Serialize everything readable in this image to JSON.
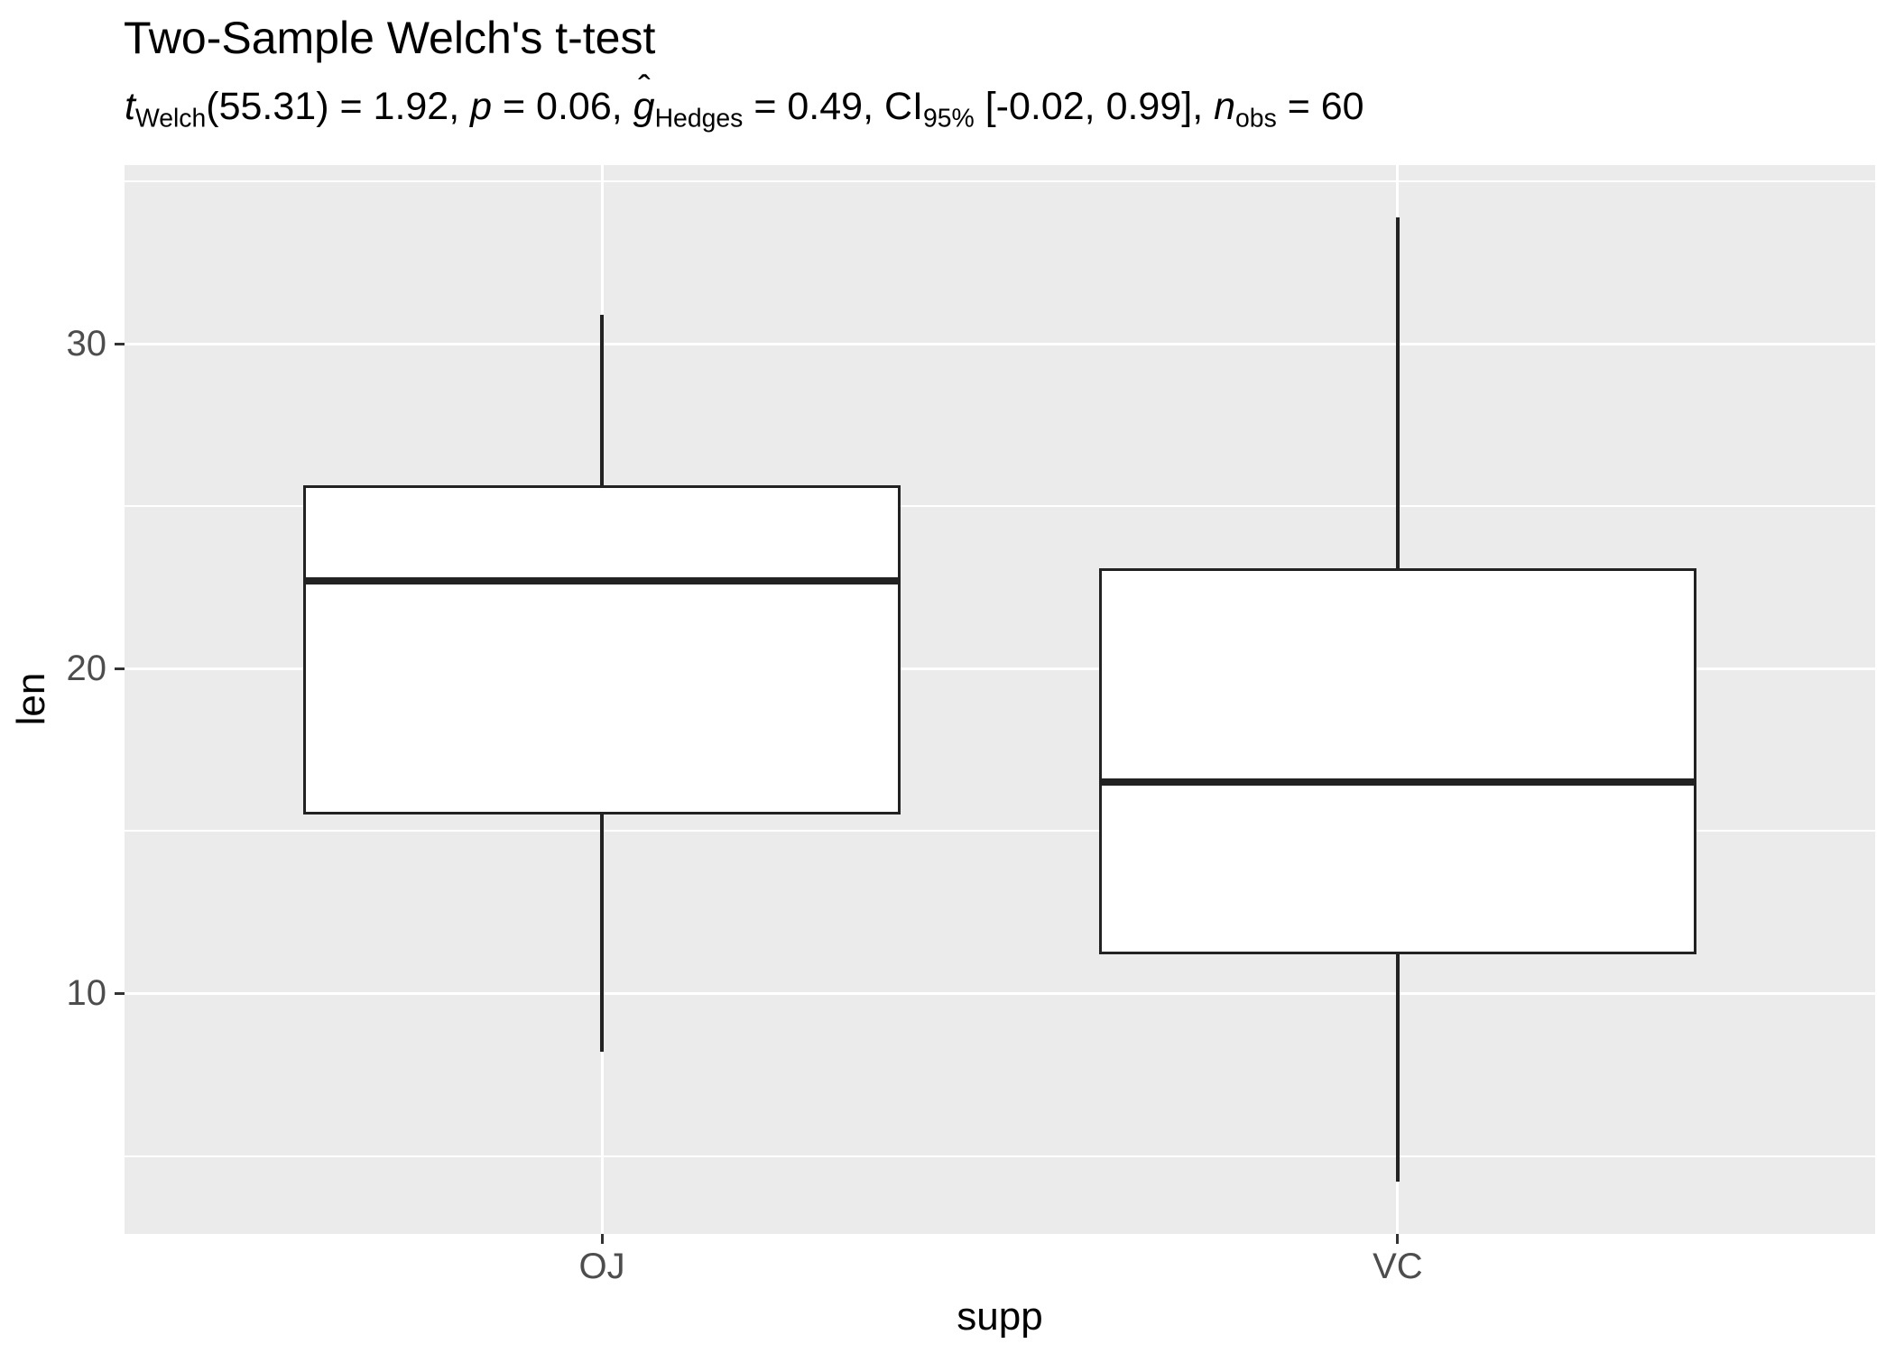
{
  "title": "Two-Sample Welch's t-test",
  "hat_glyph": "ˆ",
  "subtitle_segments": [
    {
      "text": "t",
      "style": "italic"
    },
    {
      "text": "Welch",
      "style": "sub"
    },
    {
      "text": "(55.31) = 1.92, ",
      "style": "plain"
    },
    {
      "text": "p",
      "style": "italic"
    },
    {
      "text": " = 0.06, ",
      "style": "plain"
    },
    {
      "text": "g",
      "style": "hat-italic"
    },
    {
      "text": "Hedges",
      "style": "sub"
    },
    {
      "text": " = 0.49, CI",
      "style": "plain"
    },
    {
      "text": "95%",
      "style": "sub"
    },
    {
      "text": " [-0.02, 0.99], ",
      "style": "plain"
    },
    {
      "text": "n",
      "style": "italic"
    },
    {
      "text": "obs",
      "style": "sub"
    },
    {
      "text": " = 60",
      "style": "plain"
    }
  ],
  "axes": {
    "x_title": "supp",
    "y_title": "len",
    "x_tick_labels": [
      "OJ",
      "VC"
    ],
    "y_tick_labels": [
      "10",
      "20",
      "30"
    ]
  },
  "chart_data": {
    "type": "boxplot",
    "title": "Two-Sample Welch's t-test",
    "subtitle": "t_Welch(55.31) = 1.92, p = 0.06, g-hat_Hedges = 0.49, CI_95% [-0.02, 0.99], n_obs = 60",
    "xlabel": "supp",
    "ylabel": "len",
    "categories": [
      "OJ",
      "VC"
    ],
    "y_major_ticks": [
      10,
      20,
      30
    ],
    "y_minor_gridlines": [
      5,
      15,
      25,
      35
    ],
    "ylim": [
      2.6,
      35.5
    ],
    "grid": true,
    "legend": "none",
    "series": [
      {
        "name": "OJ",
        "whisker_low": 8.2,
        "q1": 15.52,
        "median": 22.7,
        "q3": 25.65,
        "whisker_high": 30.9
      },
      {
        "name": "VC",
        "whisker_low": 4.2,
        "q1": 11.2,
        "median": 16.5,
        "q3": 23.1,
        "whisker_high": 33.9
      }
    ],
    "colors": {
      "panel_bg": "#EBEBEB",
      "grid": "#FFFFFF",
      "box_fill": "#FFFFFF",
      "box_line": "#222222",
      "tick_mark": "#333333",
      "tick_label": "#4D4D4D",
      "axis_title": "#000000",
      "title_text": "#000000"
    }
  }
}
